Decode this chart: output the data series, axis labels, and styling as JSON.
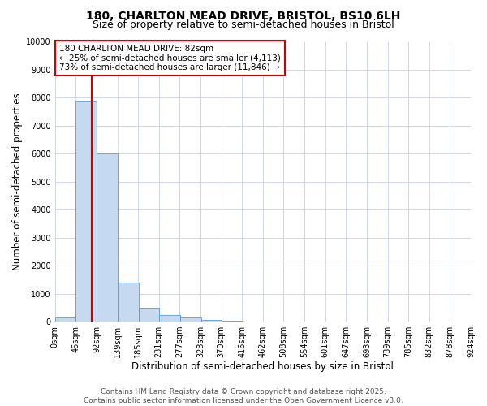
{
  "title_line1": "180, CHARLTON MEAD DRIVE, BRISTOL, BS10 6LH",
  "title_line2": "Size of property relative to semi-detached houses in Bristol",
  "xlabel": "Distribution of semi-detached houses by size in Bristol",
  "ylabel": "Number of semi-detached properties",
  "bar_color": "#c5d9f1",
  "bar_edge_color": "#5b9bd5",
  "bar_left_edges": [
    0,
    46,
    92,
    139,
    185,
    231,
    277,
    323,
    370,
    416,
    462,
    508,
    554,
    601,
    647,
    693,
    739,
    785,
    832,
    878
  ],
  "bar_heights": [
    150,
    7900,
    6000,
    1400,
    480,
    230,
    130,
    70,
    30,
    10,
    5,
    3,
    2,
    1,
    1,
    1,
    0,
    0,
    0,
    0
  ],
  "bin_width": 46,
  "property_size": 82,
  "red_line_color": "#cc0000",
  "annotation_line1": "180 CHARLTON MEAD DRIVE: 82sqm",
  "annotation_line2": "← 25% of semi-detached houses are smaller (4,113)",
  "annotation_line3": "73% of semi-detached houses are larger (11,846) →",
  "annotation_box_color": "#cc0000",
  "ylim": [
    0,
    10000
  ],
  "yticks": [
    0,
    1000,
    2000,
    3000,
    4000,
    5000,
    6000,
    7000,
    8000,
    9000,
    10000
  ],
  "ytick_labels": [
    "0",
    "1000",
    "2000",
    "3000",
    "4000",
    "5000",
    "6000",
    "7000",
    "8000",
    "9000",
    "10000"
  ],
  "xtick_labels": [
    "0sqm",
    "46sqm",
    "92sqm",
    "139sqm",
    "185sqm",
    "231sqm",
    "277sqm",
    "323sqm",
    "370sqm",
    "416sqm",
    "462sqm",
    "508sqm",
    "554sqm",
    "601sqm",
    "647sqm",
    "693sqm",
    "739sqm",
    "785sqm",
    "832sqm",
    "878sqm",
    "924sqm"
  ],
  "background_color": "#ffffff",
  "grid_color": "#d0d8e8",
  "footer_line1": "Contains HM Land Registry data © Crown copyright and database right 2025.",
  "footer_line2": "Contains public sector information licensed under the Open Government Licence v3.0.",
  "title_fontsize": 10,
  "subtitle_fontsize": 9,
  "axis_label_fontsize": 8.5,
  "tick_fontsize": 7,
  "annotation_fontsize": 7.5,
  "footer_fontsize": 6.5
}
